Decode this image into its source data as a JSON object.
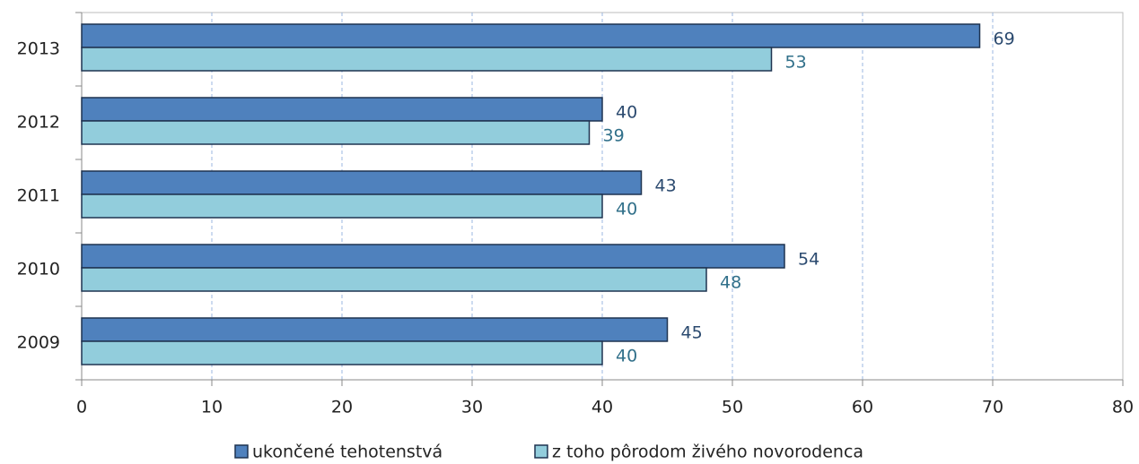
{
  "chart_data": {
    "type": "bar",
    "orientation": "horizontal",
    "categories": [
      "2013",
      "2012",
      "2011",
      "2010",
      "2009"
    ],
    "series": [
      {
        "name": "ukončené tehotenstvá",
        "color": "#4f81bd",
        "values": [
          69,
          40,
          43,
          54,
          45
        ]
      },
      {
        "name": "z toho pôrodom živého novorodenca",
        "color": "#92cddc",
        "values": [
          53,
          39,
          40,
          48,
          40
        ]
      }
    ],
    "xlim": [
      0,
      80
    ],
    "xticks": [
      0,
      10,
      20,
      30,
      40,
      50,
      60,
      70,
      80
    ],
    "grid": true,
    "legend": "bottom"
  }
}
